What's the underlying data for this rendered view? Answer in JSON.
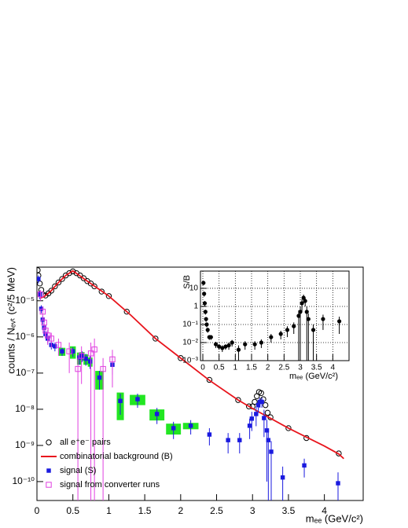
{
  "chart_data": [
    {
      "type": "scatter",
      "log_y": true,
      "grid": false,
      "legend": "bottom-left",
      "x_label": "mₑₑ (GeV/c²)",
      "y_label": "counts / Nₑᵥₜ (c²/5 MeV)",
      "xlim": [
        0,
        4.54
      ],
      "ylim": [
        3e-11,
        8.5e-05
      ],
      "xticks": [
        0,
        0.5,
        1,
        1.5,
        2,
        2.5,
        3,
        3.5,
        4
      ],
      "yticks": [
        {
          "value": 1e-10,
          "label": "10⁻¹⁰"
        },
        {
          "value": 1e-09,
          "label": "10⁻⁹"
        },
        {
          "value": 1e-08,
          "label": "10⁻⁸"
        },
        {
          "value": 1e-07,
          "label": "10⁻⁷"
        },
        {
          "value": 1e-06,
          "label": "10⁻⁶"
        },
        {
          "value": 1e-05,
          "label": "10⁻⁵"
        }
      ],
      "series": [
        {
          "name": "all e⁺e⁻ pairs",
          "color": "#000000",
          "marker": "open-circle",
          "x": [
            0.01,
            0.02,
            0.04,
            0.06,
            0.08,
            0.12,
            0.16,
            0.2,
            0.25,
            0.3,
            0.35,
            0.4,
            0.45,
            0.5,
            0.55,
            0.6,
            0.65,
            0.7,
            0.75,
            0.8,
            0.9,
            1.0,
            1.25,
            1.65,
            2.0,
            2.4,
            2.8,
            2.95,
            3.0,
            3.03,
            3.06,
            3.09,
            3.12,
            3.15,
            3.18,
            3.21,
            3.25,
            3.5,
            3.75,
            4.2
          ],
          "values": [
            7e-05,
            5e-05,
            3e-05,
            2e-05,
            1.5e-05,
            1.4e-05,
            1.6e-05,
            1.9e-05,
            2.5e-05,
            3.2e-05,
            4e-05,
            5e-05,
            5.8e-05,
            6.5e-05,
            5.8e-05,
            5e-05,
            4.2e-05,
            3.5e-05,
            3e-05,
            2.5e-05,
            1.8e-05,
            1.35e-05,
            5e-06,
            9e-07,
            2.6e-07,
            6.5e-08,
            1.8e-08,
            1.2e-08,
            1.2e-08,
            1.6e-08,
            2.3e-08,
            3e-08,
            2.8e-08,
            1.9e-08,
            1.3e-08,
            8e-09,
            6e-09,
            3e-09,
            1.6e-09,
            6e-10
          ]
        },
        {
          "name": "combinatorial background (B)",
          "color": "#e8141c",
          "marker": "line",
          "x": [
            0.05,
            0.1,
            0.2,
            0.3,
            0.4,
            0.5,
            0.7,
            1.0,
            1.3,
            1.65,
            2.0,
            2.4,
            2.8,
            3.0,
            3.5,
            4.0,
            4.2,
            4.27
          ],
          "values": [
            1.2e-05,
            1.3e-05,
            1.9e-05,
            3.2e-05,
            5e-05,
            6.7e-05,
            3.5e-05,
            1.35e-05,
            4.1e-06,
            9e-07,
            2.6e-07,
            6.3e-08,
            1.8e-08,
            1.05e-08,
            3e-09,
            9.6e-10,
            5.8e-10,
            4.3e-10
          ]
        },
        {
          "name": "signal (S)",
          "color": "#1a1adf",
          "marker": "filled-square",
          "sys_color": "#22e622",
          "x": [
            0.02,
            0.04,
            0.06,
            0.08,
            0.1,
            0.12,
            0.15,
            0.2,
            0.25,
            0.35,
            0.5,
            0.59,
            0.63,
            0.68,
            0.74,
            0.87,
            1.05,
            1.16,
            1.4,
            1.67,
            1.9,
            2.14,
            2.4,
            2.66,
            2.82,
            2.96,
            2.99,
            3.05,
            3.08,
            3.1,
            3.13,
            3.16,
            3.2,
            3.22,
            3.26,
            3.42,
            3.72,
            4.19
          ],
          "values": [
            4e-05,
            1.5e-05,
            6e-06,
            3e-06,
            1.8e-06,
            1.2e-06,
            9e-07,
            6e-07,
            5.5e-07,
            4e-07,
            4e-07,
            2.7e-07,
            3e-07,
            2.5e-07,
            2.1e-07,
            7.5e-08,
            1.7e-07,
            1.7e-08,
            1.9e-08,
            7.4e-09,
            3e-09,
            3.5e-09,
            2e-09,
            1.4e-09,
            1.4e-09,
            3.5e-09,
            5.5e-09,
            7.4e-09,
            1.3e-08,
            1.6e-08,
            1.6e-08,
            5.7e-09,
            2.6e-09,
            1.4e-09,
            6.7e-10,
            1.3e-10,
            2.8e-10,
            9e-11
          ],
          "errors": [
            1e-05,
            4e-06,
            1.5e-06,
            8e-07,
            5e-07,
            3e-07,
            2.5e-07,
            1.5e-07,
            1.5e-07,
            1e-07,
            1.2e-07,
            1e-07,
            1e-07,
            9e-08,
            8e-08,
            4e-08,
            8e-08,
            1e-08,
            8e-09,
            3.5e-09,
            1.5e-09,
            1.5e-09,
            1e-09,
            8e-10,
            8e-10,
            2e-09,
            3e-09,
            4e-09,
            5e-09,
            5e-09,
            5e-09,
            4e-09,
            2.5e-09,
            1.4e-09,
            6.5e-10,
            1.3e-10,
            1.5e-10,
            9e-11
          ],
          "sys": [
            null,
            null,
            null,
            null,
            null,
            null,
            null,
            null,
            null,
            1e-07,
            1.5e-07,
            1e-07,
            8e-08,
            8e-08,
            6e-08,
            4e-08,
            null,
            1.2e-08,
            6e-09,
            2.5e-09,
            1e-09,
            7e-10,
            null,
            null,
            null,
            null,
            null,
            null,
            null,
            null,
            null,
            null,
            null,
            null,
            null,
            null,
            null,
            null
          ]
        },
        {
          "name": "signal from converter runs",
          "color": "#e040e0",
          "marker": "open-square",
          "x": [
            0.05,
            0.08,
            0.1,
            0.12,
            0.15,
            0.2,
            0.3,
            0.45,
            0.57,
            0.62,
            0.75,
            0.8,
            0.92,
            1.05
          ],
          "values": [
            1.5e-05,
            5e-06,
            2.5e-06,
            1.5e-06,
            1.1e-06,
            9e-07,
            6e-07,
            4e-07,
            1.3e-07,
            3e-07,
            3.5e-07,
            4.5e-07,
            1.3e-07,
            2.4e-07
          ],
          "errors": [
            5e-06,
            2e-06,
            1e-06,
            6e-07,
            5e-07,
            4e-07,
            3e-07,
            3e-07,
            1.3e-07,
            2.5e-07,
            3.5e-07,
            4.5e-07,
            1.3e-07,
            2e-07
          ]
        }
      ]
    },
    {
      "type": "scatter",
      "log_y": true,
      "grid": true,
      "x_label": "mₑₑ (GeV/c²)",
      "y_label": "S/B",
      "xlim": [
        0,
        4.5
      ],
      "ylim": [
        0.001,
        90
      ],
      "xticks": [
        0,
        0.5,
        1,
        1.5,
        2,
        2.5,
        3,
        3.5,
        4
      ],
      "yticks": [
        {
          "value": 0.001,
          "label": "10⁻³"
        },
        {
          "value": 0.01,
          "label": "10⁻²"
        },
        {
          "value": 0.1,
          "label": "10⁻¹"
        },
        1,
        10
      ],
      "series": [
        {
          "color": "#000000",
          "marker": "filled-circle",
          "x": [
            0.02,
            0.04,
            0.06,
            0.08,
            0.1,
            0.12,
            0.15,
            0.2,
            0.25,
            0.4,
            0.5,
            0.6,
            0.7,
            0.8,
            0.9,
            1.1,
            1.3,
            1.6,
            1.8,
            2.1,
            2.4,
            2.6,
            2.8,
            2.95,
            3.0,
            3.05,
            3.1,
            3.15,
            3.2,
            3.25,
            3.4,
            3.7,
            4.2
          ],
          "values": [
            20,
            5,
            1.5,
            0.5,
            0.2,
            0.1,
            0.05,
            0.02,
            0.02,
            0.008,
            0.006,
            0.005,
            0.006,
            0.007,
            0.01,
            0.004,
            0.008,
            0.008,
            0.01,
            0.02,
            0.03,
            0.05,
            0.08,
            0.3,
            0.5,
            1.5,
            3,
            2,
            0.5,
            0.2,
            0.05,
            0.2,
            0.15
          ],
          "errors": [
            5,
            1.5,
            0.5,
            0.15,
            0.06,
            0.03,
            0.015,
            0.006,
            0.006,
            0.003,
            0.002,
            0.002,
            0.002,
            0.003,
            0.004,
            0.003,
            0.004,
            0.004,
            0.005,
            0.01,
            0.015,
            0.03,
            0.05,
            0.3,
            0.5,
            1,
            1.5,
            1,
            0.5,
            0.2,
            0.05,
            0.15,
            0.12
          ]
        }
      ]
    }
  ]
}
